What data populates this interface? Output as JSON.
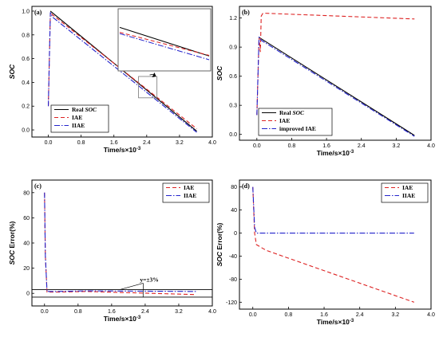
{
  "chart_data": [
    {
      "panel": "(a)",
      "type": "line",
      "xlabel_prefix": "Time/s×10",
      "xlabel_exp": "-3",
      "ylabel": "SOC",
      "ylabel_italic": true,
      "xlim": [
        -0.4,
        4.0
      ],
      "ylim": [
        -0.06,
        1.04
      ],
      "xticks": [
        "0.0",
        "0.8",
        "1.6",
        "2.4",
        "3.2",
        "4.0"
      ],
      "xtick_values": [
        0.0,
        0.8,
        1.6,
        2.4,
        3.2,
        4.0
      ],
      "yticks": [
        "0.0",
        "0.2",
        "0.4",
        "0.6",
        "0.8",
        "1.0"
      ],
      "ytick_values": [
        0.0,
        0.2,
        0.4,
        0.6,
        0.8,
        1.0
      ],
      "legend": {
        "placement": "bottom-left",
        "items": [
          {
            "label_main": "Real ",
            "label_italic": "SOC",
            "color": "#000000",
            "dash": "solid"
          },
          {
            "label_main": "IAE",
            "label_italic": "",
            "color": "#dd2222",
            "dash": "dashed"
          },
          {
            "label_main": "IIAE",
            "label_italic": "",
            "color": "#2222cc",
            "dash": "dashdot"
          }
        ]
      },
      "series": [
        {
          "name": "Real SOC",
          "color": "#000000",
          "dash": "solid",
          "x": [
            0.05,
            3.62
          ],
          "y": [
            1.0,
            -0.01
          ]
        },
        {
          "name": "IAE",
          "color": "#dd2222",
          "dash": "dashed",
          "x": [
            0.0,
            0.05,
            0.1,
            3.62
          ],
          "y": [
            0.2,
            0.99,
            0.97,
            0.01
          ]
        },
        {
          "name": "IIAE",
          "color": "#2222cc",
          "dash": "dashdot",
          "x": [
            0.0,
            0.05,
            0.1,
            3.62
          ],
          "y": [
            0.2,
            0.99,
            0.95,
            -0.02
          ]
        }
      ],
      "zoom_box": {
        "x": [
          2.2,
          2.65
        ],
        "y": [
          0.27,
          0.45
        ]
      },
      "inset": {
        "series": [
          {
            "name": "Real SOC",
            "color": "#000000",
            "dash": "solid",
            "y": [
              0.7,
              0.24
            ]
          },
          {
            "name": "IAE",
            "color": "#dd2222",
            "dash": "dashed",
            "y": [
              0.62,
              0.25
            ]
          },
          {
            "name": "IIAE",
            "color": "#2222cc",
            "dash": "dashdot",
            "y": [
              0.6,
              0.18
            ]
          }
        ]
      }
    },
    {
      "panel": "(b)",
      "type": "line",
      "xlabel_prefix": "Time/s×10",
      "xlabel_exp": "-3",
      "ylabel": "SOC",
      "ylabel_italic": true,
      "xlim": [
        -0.4,
        4.0
      ],
      "ylim": [
        -0.06,
        1.32
      ],
      "xticks": [
        "0.0",
        "0.8",
        "1.6",
        "2.4",
        "3.2",
        "4.0"
      ],
      "xtick_values": [
        0.0,
        0.8,
        1.6,
        2.4,
        3.2,
        4.0
      ],
      "yticks": [
        "0.0",
        "0.3",
        "0.6",
        "0.9",
        "1.2"
      ],
      "ytick_values": [
        0.0,
        0.3,
        0.6,
        0.9,
        1.2
      ],
      "legend": {
        "placement": "bottom-left",
        "items": [
          {
            "label_main": "Real ",
            "label_italic": "SOC",
            "color": "#000000",
            "dash": "solid"
          },
          {
            "label_main": "IAE",
            "label_italic": "",
            "color": "#dd2222",
            "dash": "dashed"
          },
          {
            "label_main": "improved IAE",
            "label_italic": "",
            "color": "#2222cc",
            "dash": "dashdot"
          }
        ]
      },
      "series": [
        {
          "name": "Real SOC",
          "color": "#000000",
          "dash": "solid",
          "x": [
            0.05,
            3.62
          ],
          "y": [
            1.0,
            -0.01
          ]
        },
        {
          "name": "IAE",
          "color": "#dd2222",
          "dash": "dashed",
          "x": [
            0.0,
            0.05,
            0.08,
            0.1,
            0.14,
            3.62
          ],
          "y": [
            0.2,
            1.0,
            0.85,
            1.22,
            1.25,
            1.19
          ]
        },
        {
          "name": "improved IAE",
          "color": "#2222cc",
          "dash": "dashdot",
          "x": [
            0.0,
            0.05,
            0.1,
            3.62
          ],
          "y": [
            0.2,
            1.0,
            0.97,
            -0.02
          ]
        }
      ]
    },
    {
      "panel": "(c)",
      "type": "line",
      "xlabel_prefix": "Time/s×10",
      "xlabel_exp": "-3",
      "ylabel_italic_part": "SOC",
      "ylabel_rest": " Error(%)",
      "xlim": [
        -0.3,
        4.0
      ],
      "ylim": [
        -10,
        90
      ],
      "xticks": [
        "0.0",
        "0.8",
        "1.6",
        "2.4",
        "3.2",
        "4.0"
      ],
      "xtick_values": [
        0.0,
        0.8,
        1.6,
        2.4,
        3.2,
        4.0
      ],
      "yticks": [
        "0",
        "20",
        "40",
        "60",
        "80"
      ],
      "ytick_values": [
        0,
        20,
        40,
        60,
        80
      ],
      "legend": {
        "placement": "top-right",
        "items": [
          {
            "label_main": "IAE",
            "label_italic": "",
            "color": "#dd2222",
            "dash": "dashed"
          },
          {
            "label_main": "IIAE",
            "label_italic": "",
            "color": "#2222cc",
            "dash": "dashdot"
          }
        ]
      },
      "annotation": "y=±3%",
      "reference_lines": [
        3,
        -3
      ],
      "series": [
        {
          "name": "IAE",
          "color": "#dd2222",
          "dash": "dashed",
          "x": [
            0.0,
            0.02,
            0.06,
            0.3,
            1.0,
            3.62
          ],
          "y": [
            80,
            30,
            1,
            1,
            1.5,
            -1
          ]
        },
        {
          "name": "IIAE",
          "color": "#2222cc",
          "dash": "dashdot",
          "x": [
            0.0,
            0.02,
            0.06,
            0.3,
            1.0,
            3.62
          ],
          "y": [
            80,
            30,
            1.5,
            1.5,
            2,
            1.5
          ]
        }
      ]
    },
    {
      "panel": "(d)",
      "type": "line",
      "xlabel_prefix": "Time/s×10",
      "xlabel_exp": "-3",
      "ylabel_italic_part": "SOC",
      "ylabel_rest": " Error(%)",
      "xlim": [
        -0.3,
        4.0
      ],
      "ylim": [
        -132,
        92
      ],
      "xticks": [
        "0.0",
        "0.8",
        "1.6",
        "2.4",
        "3.2",
        "4.0"
      ],
      "xtick_values": [
        0.0,
        0.8,
        1.6,
        2.4,
        3.2,
        4.0
      ],
      "yticks": [
        "-120",
        "-80",
        "-40",
        "0",
        "40",
        "80"
      ],
      "ytick_values": [
        -120,
        -80,
        -40,
        0,
        40,
        80
      ],
      "legend": {
        "placement": "top-right",
        "items": [
          {
            "label_main": "IAE",
            "label_italic": "",
            "color": "#dd2222",
            "dash": "dashed"
          },
          {
            "label_main": "IIAE",
            "label_italic": "",
            "color": "#2222cc",
            "dash": "dashdot"
          }
        ]
      },
      "series": [
        {
          "name": "IAE",
          "color": "#dd2222",
          "dash": "dashed",
          "x": [
            0.0,
            0.04,
            0.08,
            0.3,
            3.62
          ],
          "y": [
            80,
            0,
            -20,
            -30,
            -120
          ]
        },
        {
          "name": "IIAE",
          "color": "#2222cc",
          "dash": "dashdot",
          "x": [
            0.0,
            0.04,
            0.08,
            3.62
          ],
          "y": [
            80,
            10,
            0,
            0
          ]
        }
      ]
    }
  ]
}
